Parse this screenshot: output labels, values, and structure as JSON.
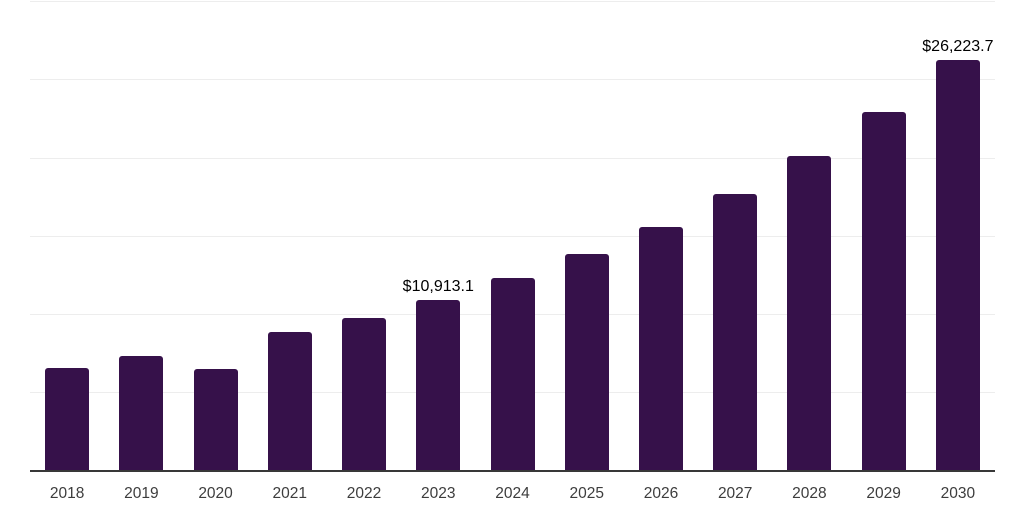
{
  "chart": {
    "background_color": "#ffffff",
    "bar_color": "#36114a",
    "axis_color": "#383838",
    "gridline_color": "#ededed",
    "tick_label_color": "#3d3d3d",
    "data_label_color": "#000000"
  },
  "chart_data": {
    "type": "bar",
    "title": "",
    "xlabel": "",
    "ylabel": "",
    "categories": [
      "2018",
      "2019",
      "2020",
      "2021",
      "2022",
      "2023",
      "2024",
      "2025",
      "2026",
      "2027",
      "2028",
      "2029",
      "2030"
    ],
    "values": [
      6550,
      7345,
      6495,
      8835,
      9755,
      10913.1,
      12310,
      13840,
      15540,
      17690,
      20075,
      22885,
      26223.7
    ],
    "data_labels": {
      "2023": "$10,913.1",
      "2030": "$26,223.7"
    },
    "ylim": [
      0,
      30000
    ],
    "grid_step": 5000,
    "grid": "horizontal-only",
    "y_axis_labels": "hidden",
    "legend_position": "none"
  }
}
